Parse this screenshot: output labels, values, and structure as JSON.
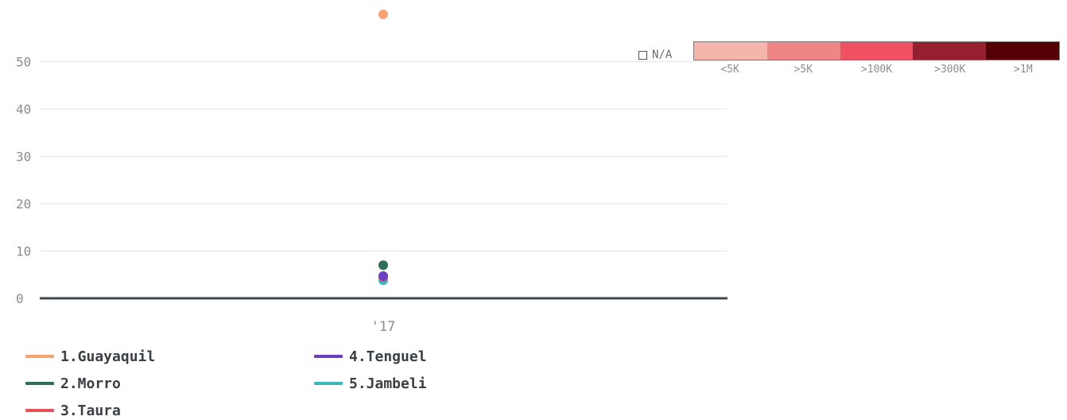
{
  "chart_data": {
    "type": "scatter",
    "categories": [
      "'17"
    ],
    "ylim": [
      0,
      60
    ],
    "yticks": [
      0,
      10,
      20,
      30,
      40,
      50
    ],
    "grid": true,
    "series": [
      {
        "name": "1.Guayaquil",
        "color": "#f9a372",
        "values": [
          60
        ]
      },
      {
        "name": "2.Morro",
        "color": "#2f6e57",
        "values": [
          7
        ]
      },
      {
        "name": "3.Taura",
        "color": "#e8505b",
        "values": [
          4.5
        ]
      },
      {
        "name": "4.Tenguel",
        "color": "#6b3fc0",
        "values": [
          4.7
        ]
      },
      {
        "name": "5.Jambeli",
        "color": "#3cb8bd",
        "values": [
          3.8
        ]
      }
    ]
  },
  "scale": {
    "na_label": "N/A",
    "bins": [
      {
        "label": "<5K",
        "color": "#f4b5ad"
      },
      {
        "label": ">5K",
        "color": "#f08585"
      },
      {
        "label": ">100K",
        "color": "#ef5062"
      },
      {
        "label": ">300K",
        "color": "#951f2f"
      },
      {
        "label": ">1M",
        "color": "#560006"
      }
    ]
  }
}
